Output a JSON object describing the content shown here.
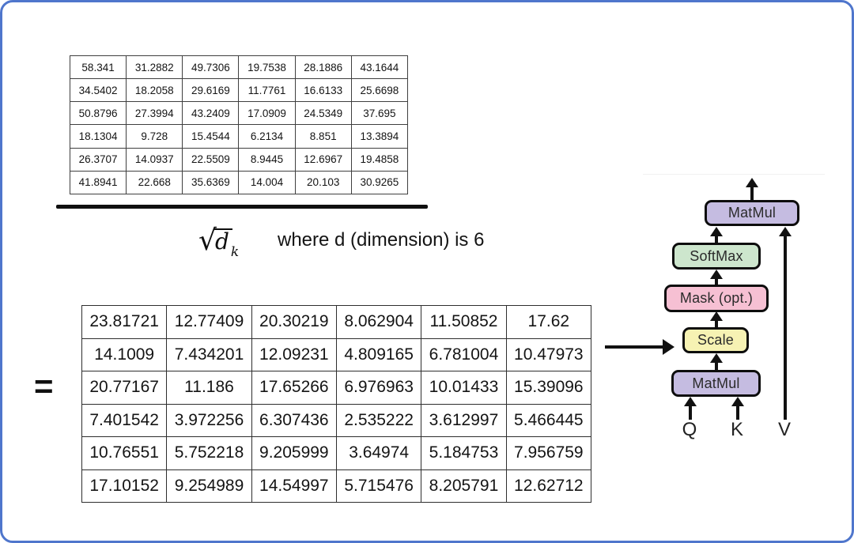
{
  "canvas": {
    "background": "#ffffff",
    "border_color": "#4f76cc"
  },
  "matrix1": {
    "rows": [
      [
        "58.341",
        "31.2882",
        "49.7306",
        "19.7538",
        "28.1886",
        "43.1644"
      ],
      [
        "34.5402",
        "18.2058",
        "29.6169",
        "11.7761",
        "16.6133",
        "25.6698"
      ],
      [
        "50.8796",
        "27.3994",
        "43.2409",
        "17.0909",
        "24.5349",
        "37.695"
      ],
      [
        "18.1304",
        "9.728",
        "15.4544",
        "6.2134",
        "8.851",
        "13.3894"
      ],
      [
        "26.3707",
        "14.0937",
        "22.5509",
        "8.9445",
        "12.6967",
        "19.4858"
      ],
      [
        "41.8941",
        "22.668",
        "35.6369",
        "14.004",
        "20.103",
        "30.9265"
      ]
    ]
  },
  "formula": {
    "radical": "√",
    "radicand": "d",
    "subscript": "k",
    "caption": "where d (dimension) is 6"
  },
  "equals_sign": "=",
  "matrix2": {
    "rows": [
      [
        "23.81721",
        "12.77409",
        "20.30219",
        "8.062904",
        "11.50852",
        "17.62"
      ],
      [
        "14.1009",
        "7.434201",
        "12.09231",
        "4.809165",
        "6.781004",
        "10.47973"
      ],
      [
        "20.77167",
        "11.186",
        "17.65266",
        "6.976963",
        "10.01433",
        "15.39096"
      ],
      [
        "7.401542",
        "3.972256",
        "6.307436",
        "2.535222",
        "3.612997",
        "5.466445"
      ],
      [
        "10.76551",
        "5.752218",
        "9.205999",
        "3.64974",
        "5.184753",
        "7.956759"
      ],
      [
        "17.10152",
        "9.254989",
        "14.54997",
        "5.715476",
        "8.205791",
        "12.62712"
      ]
    ]
  },
  "diagram": {
    "boxes": [
      {
        "id": "matmul-top",
        "label": "MatMul",
        "fill": "#c5bce1"
      },
      {
        "id": "softmax",
        "label": "SoftMax",
        "fill": "#cde6cd"
      },
      {
        "id": "mask",
        "label": "Mask (opt.)",
        "fill": "#f6c0d3"
      },
      {
        "id": "scale",
        "label": "Scale",
        "fill": "#f6f2b3"
      },
      {
        "id": "matmul-bottom",
        "label": "MatMul",
        "fill": "#c5bce1"
      }
    ],
    "inputs": [
      {
        "label": "Q"
      },
      {
        "label": "K"
      },
      {
        "label": "V"
      }
    ]
  },
  "colors": {
    "box_matmul": "#c5bce1",
    "box_softmax": "#cde6cd",
    "box_mask": "#f6c0d3",
    "box_scale": "#f6f2b3",
    "arrow": "#111111",
    "frame_blue": "#4f76cc"
  }
}
